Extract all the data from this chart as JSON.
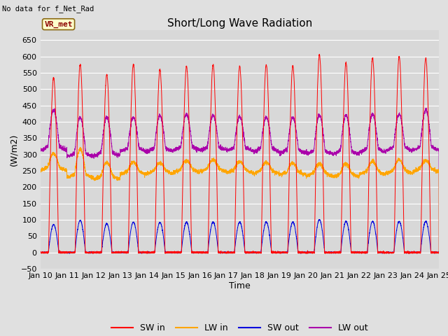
{
  "title": "Short/Long Wave Radiation",
  "xlabel": "Time",
  "ylabel": "(W/m2)",
  "top_left_text": "No data for f_Net_Rad",
  "legend_label": "VR_met",
  "ylim": [
    -50,
    680
  ],
  "yticks": [
    -50,
    0,
    50,
    100,
    150,
    200,
    250,
    300,
    350,
    400,
    450,
    500,
    550,
    600,
    650
  ],
  "date_start": 10,
  "date_end": 25,
  "n_days": 15,
  "points_per_day": 288,
  "sw_in_peaks": [
    535,
    575,
    545,
    575,
    560,
    570,
    575,
    570,
    575,
    570,
    605,
    580,
    595,
    600,
    595
  ],
  "lw_in_baseline": [
    260,
    238,
    233,
    248,
    250,
    254,
    256,
    253,
    250,
    246,
    243,
    240,
    248,
    251,
    256
  ],
  "lw_in_peaks": [
    295,
    308,
    268,
    268,
    266,
    273,
    276,
    270,
    268,
    266,
    263,
    263,
    270,
    276,
    273
  ],
  "sw_out_peaks": [
    85,
    98,
    88,
    93,
    92,
    93,
    93,
    93,
    93,
    93,
    100,
    95,
    95,
    95,
    95
  ],
  "lw_out_baseline": [
    322,
    302,
    305,
    318,
    318,
    322,
    322,
    320,
    318,
    313,
    310,
    310,
    316,
    321,
    322
  ],
  "lw_out_peaks": [
    428,
    405,
    405,
    405,
    410,
    415,
    412,
    407,
    405,
    405,
    412,
    412,
    415,
    415,
    428
  ],
  "colors": {
    "sw_in": "#FF0000",
    "lw_in": "#FFA500",
    "sw_out": "#0000DD",
    "lw_out": "#AA00AA"
  },
  "bg_color": "#E0E0E0",
  "plot_bg_color": "#D8D8D8",
  "grid_color": "#FFFFFF",
  "title_fontsize": 11,
  "label_fontsize": 9,
  "tick_fontsize": 8,
  "legend_fontsize": 9
}
